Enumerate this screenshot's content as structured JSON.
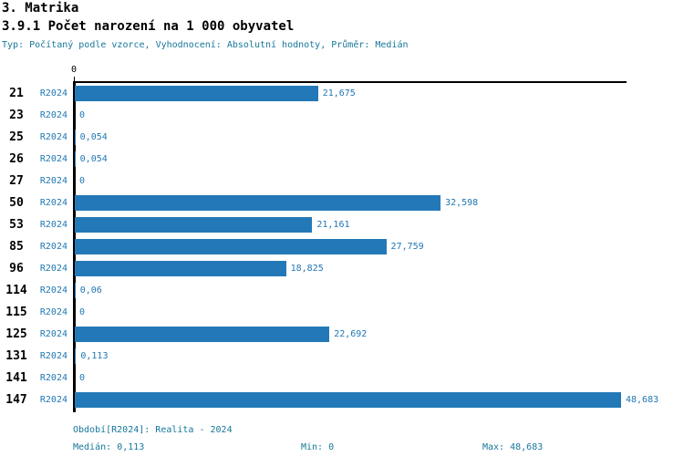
{
  "header": {
    "title": "3. Matrika",
    "subtitle": "3.9.1 Počet narození na 1 000 obyvatel",
    "meta": "Typ: Počítaný podle vzorce, Vyhodnocení: Absolutní hodnoty, Průměr: Medián"
  },
  "chart_data": {
    "type": "bar",
    "orientation": "horizontal",
    "series_name": "R2024",
    "bar_color": "#2379b7",
    "x_axis": {
      "tick_labels": [
        "0"
      ],
      "xlim": [
        0,
        49.3
      ]
    },
    "max_value": 48.683,
    "categories": [
      "21",
      "23",
      "25",
      "26",
      "27",
      "50",
      "53",
      "85",
      "96",
      "114",
      "115",
      "125",
      "131",
      "141",
      "147"
    ],
    "rows": [
      {
        "category": "21",
        "series": "R2024",
        "value": 21.675,
        "label": "21,675"
      },
      {
        "category": "23",
        "series": "R2024",
        "value": 0,
        "label": "0"
      },
      {
        "category": "25",
        "series": "R2024",
        "value": 0.054,
        "label": "0,054"
      },
      {
        "category": "26",
        "series": "R2024",
        "value": 0.054,
        "label": "0,054"
      },
      {
        "category": "27",
        "series": "R2024",
        "value": 0,
        "label": "0"
      },
      {
        "category": "50",
        "series": "R2024",
        "value": 32.598,
        "label": "32,598"
      },
      {
        "category": "53",
        "series": "R2024",
        "value": 21.161,
        "label": "21,161"
      },
      {
        "category": "85",
        "series": "R2024",
        "value": 27.759,
        "label": "27,759"
      },
      {
        "category": "96",
        "series": "R2024",
        "value": 18.825,
        "label": "18,825"
      },
      {
        "category": "114",
        "series": "R2024",
        "value": 0.06,
        "label": "0,06"
      },
      {
        "category": "115",
        "series": "R2024",
        "value": 0,
        "label": "0"
      },
      {
        "category": "125",
        "series": "R2024",
        "value": 22.692,
        "label": "22,692"
      },
      {
        "category": "131",
        "series": "R2024",
        "value": 0.113,
        "label": "0,113"
      },
      {
        "category": "141",
        "series": "R2024",
        "value": 0,
        "label": "0"
      },
      {
        "category": "147",
        "series": "R2024",
        "value": 48.683,
        "label": "48,683"
      }
    ]
  },
  "footer": {
    "period": "Období[R2024]: Realita - 2024",
    "median_label": "Medián:",
    "median_value": "0,113",
    "min_label": "Min:",
    "min_value": "0",
    "max_label": "Max:",
    "max_value": "48,683"
  },
  "colors": {
    "bar": "#2379b7",
    "accent_text": "#1f77b4",
    "meta_text": "#17779b",
    "axis": "#000000"
  }
}
